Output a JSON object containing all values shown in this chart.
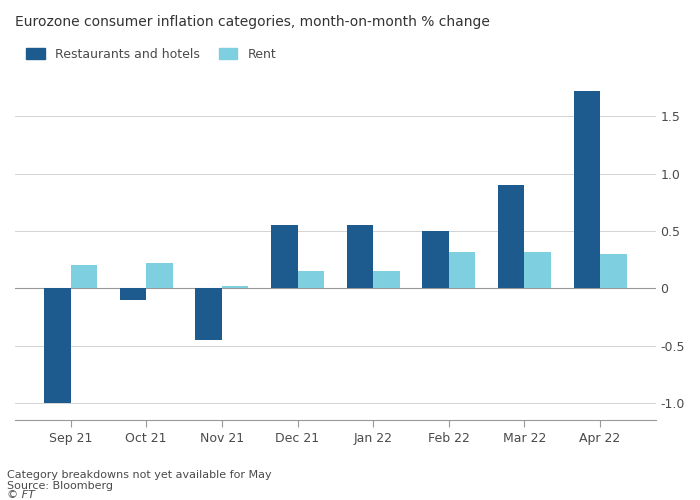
{
  "title": "Eurozone consumer inflation categories, month-on-month % change",
  "categories": [
    "Sep 21",
    "Oct 21",
    "Nov 21",
    "Dec 21",
    "Jan 22",
    "Feb 22",
    "Mar 22",
    "Apr 22"
  ],
  "series": [
    {
      "name": "Restaurants and hotels",
      "values": [
        -1.0,
        -0.1,
        -0.45,
        0.55,
        0.55,
        0.5,
        0.9,
        1.72
      ],
      "color": "#1d5a8e"
    },
    {
      "name": "Rent",
      "values": [
        0.2,
        0.22,
        0.02,
        0.15,
        0.15,
        0.32,
        0.32,
        0.3
      ],
      "color": "#7ecfe0"
    }
  ],
  "ylim": [
    -1.15,
    1.95
  ],
  "yticks": [
    -1.0,
    -0.5,
    0.0,
    0.5,
    1.0,
    1.5
  ],
  "ytick_labels": [
    "-1.0",
    "-0.5",
    "0",
    "0.5",
    "1.0",
    "1.5"
  ],
  "footnote1": "Category breakdowns not yet available for May",
  "footnote2": "Source: Bloomberg",
  "footnote3": "© FT",
  "background_color": "#ffffff",
  "plot_bg_color": "#ffffff",
  "bar_width": 0.35,
  "grid_color": "#cccccc",
  "text_color": "#4a4a4a",
  "title_color": "#333333",
  "axis_line_color": "#999999"
}
